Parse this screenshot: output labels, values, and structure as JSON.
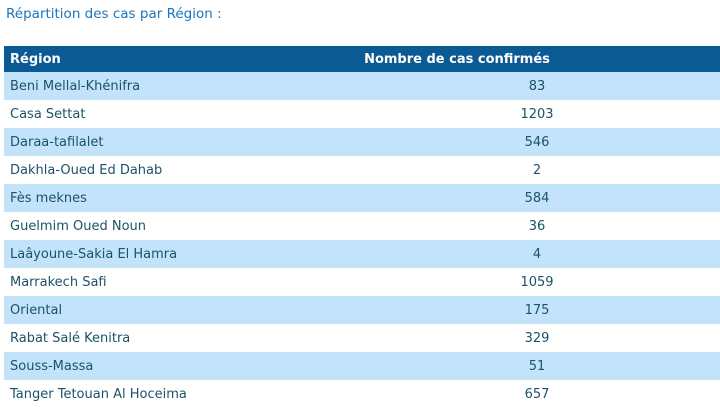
{
  "colors": {
    "title_color": "#1B75BC",
    "header_bg": "#0C5A94",
    "header_text": "#FFFFFF",
    "row_bg": "#FFFFFF",
    "row_alt_bg": "#C2E3FA",
    "cell_text": "#1C5366"
  },
  "page": {
    "title": "Répartition des cas par Région :"
  },
  "table": {
    "headers": {
      "region": "Région",
      "cases": "Nombre de cas confirmés"
    },
    "rows": [
      {
        "region": "Beni Mellal-Khénifra",
        "cases": "83"
      },
      {
        "region": "Casa Settat",
        "cases": "1203"
      },
      {
        "region": "Daraa-tafilalet",
        "cases": "546"
      },
      {
        "region": "Dakhla-Oued Ed Dahab",
        "cases": "2"
      },
      {
        "region": "Fès meknes",
        "cases": "584"
      },
      {
        "region": "Guelmim Oued Noun",
        "cases": "36"
      },
      {
        "region": "Laâyoune-Sakia El Hamra",
        "cases": "4"
      },
      {
        "region": "Marrakech Safi",
        "cases": "1059"
      },
      {
        "region": "Oriental",
        "cases": "175"
      },
      {
        "region": "Rabat Salé Kenitra",
        "cases": "329"
      },
      {
        "region": "Souss-Massa",
        "cases": "51"
      },
      {
        "region": "Tanger Tetouan Al Hoceima",
        "cases": "657"
      }
    ]
  }
}
